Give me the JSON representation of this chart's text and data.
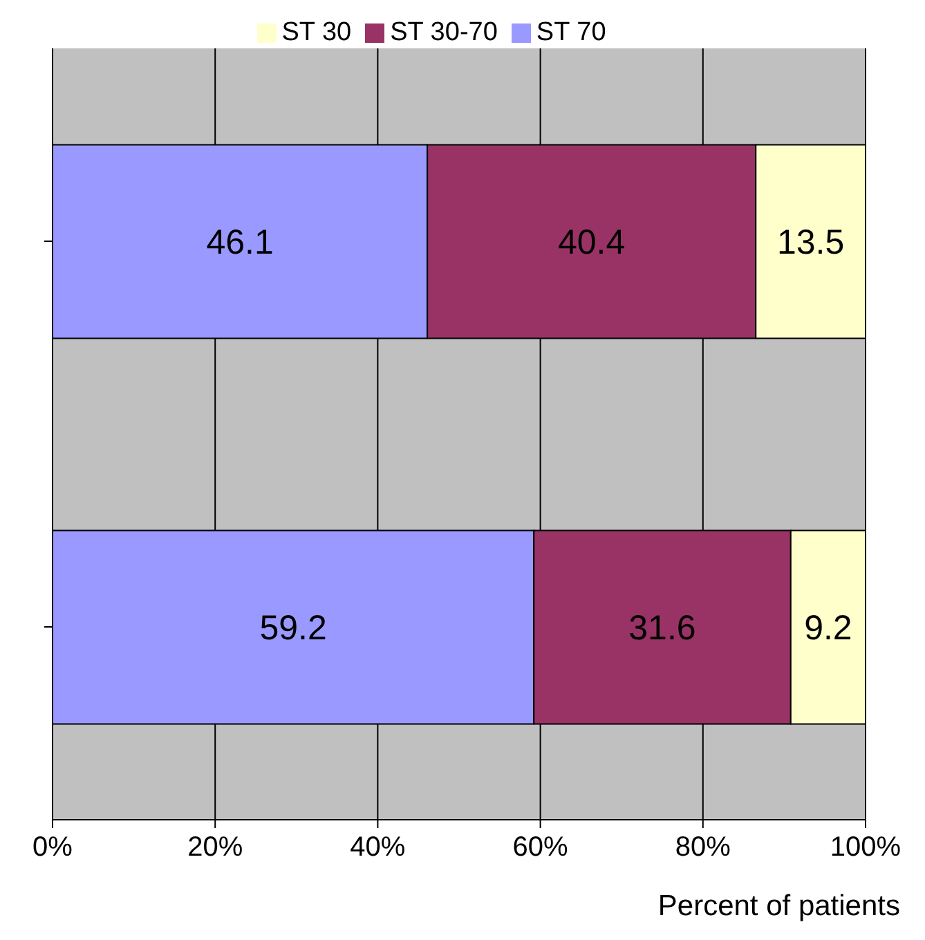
{
  "chart_data": {
    "type": "bar",
    "orientation": "horizontal",
    "stacked": true,
    "categories": [
      null,
      null
    ],
    "series": [
      {
        "name": "ST 70",
        "color": "#9999ff",
        "values": [
          46.1,
          59.2
        ]
      },
      {
        "name": "ST 30-70",
        "color": "#993366",
        "values": [
          40.4,
          31.6
        ]
      },
      {
        "name": "ST 30",
        "color": "#ffffcc",
        "values": [
          13.5,
          9.2
        ]
      }
    ],
    "xlim": [
      0,
      100
    ],
    "xticks": [
      {
        "value": 0,
        "label": "0%"
      },
      {
        "value": 20,
        "label": "20%"
      },
      {
        "value": 40,
        "label": "40%"
      },
      {
        "value": 60,
        "label": "60%"
      },
      {
        "value": 80,
        "label": "80%"
      },
      {
        "value": 100,
        "label": "100%"
      }
    ],
    "xlabel": "Percent of patients",
    "grid": "x",
    "legend": "top",
    "data_labels": true
  }
}
